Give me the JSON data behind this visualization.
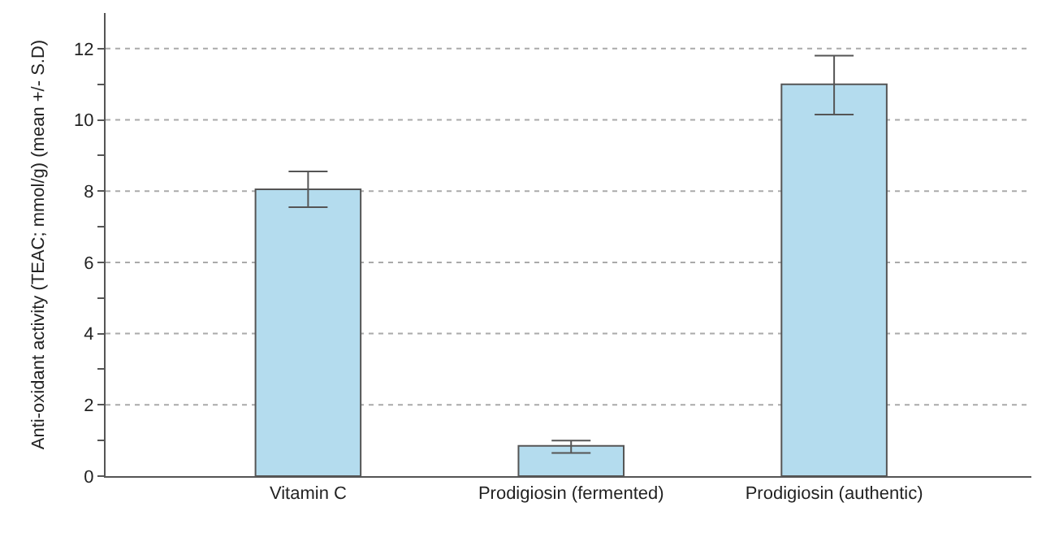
{
  "chart_data": {
    "type": "bar",
    "ylabel": "Anti-oxidant activity (TEAC; mmol/g) (mean +/- S.D)",
    "categories": [
      "Vitamin C",
      "Prodigiosin (fermented)",
      "Prodigiosin (authentic)"
    ],
    "values": [
      8.05,
      0.85,
      11.0
    ],
    "errors": [
      [
        7.55,
        8.55
      ],
      [
        0.65,
        1.0
      ],
      [
        10.15,
        11.8
      ]
    ],
    "color": "#b4dcee",
    "ylim": [
      0,
      13
    ],
    "yticks": [
      0,
      {
        "value": 1,
        "label": null
      },
      2,
      {
        "value": 3,
        "label": null
      },
      4,
      {
        "value": 5,
        "label": null
      },
      6,
      {
        "value": 7,
        "label": null
      },
      8,
      {
        "value": 9,
        "label": null
      },
      10,
      {
        "value": 11,
        "label": null
      },
      12
    ],
    "grid": "y"
  }
}
